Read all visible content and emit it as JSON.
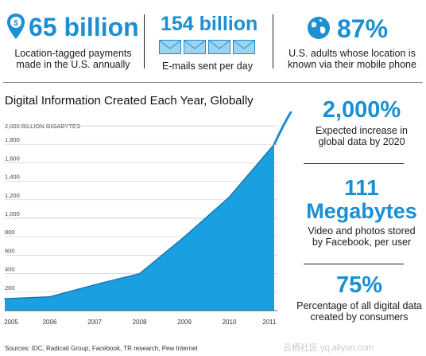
{
  "top_stats": [
    {
      "value": "65 billion",
      "caption": "Location-tagged payments made in the U.S. annually",
      "icon": "dollar-pin-icon"
    },
    {
      "value": "154 billion",
      "caption": "E-mails sent per day",
      "icon": "envelope-icon"
    },
    {
      "value": "87%",
      "caption": "U.S. adults whose location is known via their mobile phone",
      "icon": "globe-icon"
    }
  ],
  "side_stats": [
    {
      "value": "2,000%",
      "caption": "Expected increase in global data by 2020"
    },
    {
      "value_line1": "111",
      "value_line2": "Megabytes",
      "caption": "Video and photos stored by Facebook, per user"
    },
    {
      "value": "75%",
      "caption": "Percentage of all digital data created by consumers"
    }
  ],
  "source": "Sources: IDC, Radicati Group, Facebook, TR research, Pew Internet",
  "watermark": "云栖社区 yq.aliyun.com",
  "colors": {
    "accent": "#1a8fd1",
    "area": "#1a9fe0"
  },
  "chart_data": {
    "type": "area",
    "title": "Digital Information Created Each Year, Globally",
    "ylabel": "2,000 BILLION GIGABYTES",
    "x": [
      "2005",
      "2006",
      "2007",
      "2008",
      "2009",
      "2010",
      "2011"
    ],
    "values": [
      130,
      150,
      280,
      400,
      800,
      1230,
      1800
    ],
    "y_ticks": [
      "200",
      "400",
      "600",
      "800",
      "1,000",
      "1,200",
      "1,400",
      "1,600",
      "1,800"
    ],
    "x_tick_labels": [
      "2005",
      "2006",
      "2007",
      "2008",
      "2009",
      "2010",
      "2011"
    ],
    "ylim": [
      0,
      2000
    ],
    "grid": true
  }
}
